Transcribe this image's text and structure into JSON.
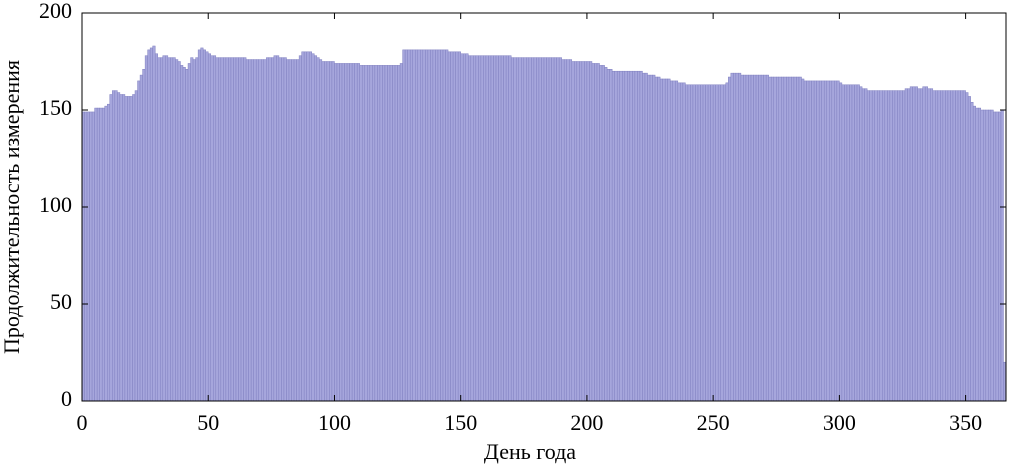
{
  "chart_data": {
    "type": "bar",
    "xlabel": "День года",
    "ylabel": "Продолжительность измерения",
    "color": "#a6a6dc",
    "edgecolor": "#8080c0",
    "xlim": [
      0,
      366
    ],
    "ylim": [
      0,
      200
    ],
    "xticks": [
      0,
      50,
      100,
      150,
      200,
      250,
      300,
      350
    ],
    "yticks": [
      0,
      50,
      100,
      150,
      200
    ],
    "x": [
      0,
      1,
      2,
      3,
      4,
      5,
      6,
      7,
      8,
      9,
      10,
      11,
      12,
      13,
      14,
      15,
      16,
      17,
      18,
      19,
      20,
      21,
      22,
      23,
      24,
      25,
      26,
      27,
      28,
      29,
      30,
      31,
      32,
      33,
      34,
      35,
      36,
      37,
      38,
      39,
      40,
      41,
      42,
      43,
      44,
      45,
      46,
      47,
      48,
      49,
      50,
      51,
      52,
      53,
      54,
      55,
      56,
      57,
      58,
      59,
      60,
      61,
      62,
      63,
      64,
      65,
      66,
      67,
      68,
      69,
      70,
      71,
      72,
      73,
      74,
      75,
      76,
      77,
      78,
      79,
      80,
      81,
      82,
      83,
      84,
      85,
      86,
      87,
      88,
      89,
      90,
      91,
      92,
      93,
      94,
      95,
      96,
      97,
      98,
      99,
      100,
      101,
      102,
      103,
      104,
      105,
      106,
      107,
      108,
      109,
      110,
      111,
      112,
      113,
      114,
      115,
      116,
      117,
      118,
      119,
      120,
      121,
      122,
      123,
      124,
      125,
      126,
      127,
      128,
      129,
      130,
      131,
      132,
      133,
      134,
      135,
      136,
      137,
      138,
      139,
      140,
      141,
      142,
      143,
      144,
      145,
      146,
      147,
      148,
      149,
      150,
      151,
      152,
      153,
      154,
      155,
      156,
      157,
      158,
      159,
      160,
      161,
      162,
      163,
      164,
      165,
      166,
      167,
      168,
      169,
      170,
      171,
      172,
      173,
      174,
      175,
      176,
      177,
      178,
      179,
      180,
      181,
      182,
      183,
      184,
      185,
      186,
      187,
      188,
      189,
      190,
      191,
      192,
      193,
      194,
      195,
      196,
      197,
      198,
      199,
      200,
      201,
      202,
      203,
      204,
      205,
      206,
      207,
      208,
      209,
      210,
      211,
      212,
      213,
      214,
      215,
      216,
      217,
      218,
      219,
      220,
      221,
      222,
      223,
      224,
      225,
      226,
      227,
      228,
      229,
      230,
      231,
      232,
      233,
      234,
      235,
      236,
      237,
      238,
      239,
      240,
      241,
      242,
      243,
      244,
      245,
      246,
      247,
      248,
      249,
      250,
      251,
      252,
      253,
      254,
      255,
      256,
      257,
      258,
      259,
      260,
      261,
      262,
      263,
      264,
      265,
      266,
      267,
      268,
      269,
      270,
      271,
      272,
      273,
      274,
      275,
      276,
      277,
      278,
      279,
      280,
      281,
      282,
      283,
      284,
      285,
      286,
      287,
      288,
      289,
      290,
      291,
      292,
      293,
      294,
      295,
      296,
      297,
      298,
      299,
      300,
      301,
      302,
      303,
      304,
      305,
      306,
      307,
      308,
      309,
      310,
      311,
      312,
      313,
      314,
      315,
      316,
      317,
      318,
      319,
      320,
      321,
      322,
      323,
      324,
      325,
      326,
      327,
      328,
      329,
      330,
      331,
      332,
      333,
      334,
      335,
      336,
      337,
      338,
      339,
      340,
      341,
      342,
      343,
      344,
      345,
      346,
      347,
      348,
      349,
      350,
      351,
      352,
      353,
      354,
      355,
      356,
      357,
      358,
      359,
      360,
      361,
      362,
      363,
      364,
      365
    ],
    "values": [
      149,
      149,
      149,
      149,
      149,
      151,
      151,
      151,
      151,
      152,
      153,
      158,
      160,
      160,
      159,
      158,
      158,
      157,
      157,
      157,
      158,
      160,
      165,
      168,
      171,
      178,
      181,
      182,
      183,
      179,
      177,
      177,
      178,
      178,
      177,
      177,
      177,
      176,
      175,
      173,
      172,
      171,
      174,
      177,
      176,
      177,
      181,
      182,
      181,
      180,
      179,
      178,
      178,
      177,
      177,
      177,
      177,
      177,
      177,
      177,
      177,
      177,
      177,
      177,
      177,
      176,
      176,
      176,
      176,
      176,
      176,
      176,
      176,
      177,
      177,
      177,
      178,
      178,
      177,
      177,
      177,
      176,
      176,
      176,
      176,
      176,
      178,
      180,
      180,
      180,
      180,
      179,
      178,
      177,
      176,
      175,
      175,
      175,
      175,
      175,
      174,
      174,
      174,
      174,
      174,
      174,
      174,
      174,
      174,
      174,
      173,
      173,
      173,
      173,
      173,
      173,
      173,
      173,
      173,
      173,
      173,
      173,
      173,
      173,
      173,
      173,
      174,
      181,
      181,
      181,
      181,
      181,
      181,
      181,
      181,
      181,
      181,
      181,
      181,
      181,
      181,
      181,
      181,
      181,
      181,
      180,
      180,
      180,
      180,
      180,
      179,
      179,
      179,
      178,
      178,
      178,
      178,
      178,
      178,
      178,
      178,
      178,
      178,
      178,
      178,
      178,
      178,
      178,
      178,
      178,
      177,
      177,
      177,
      177,
      177,
      177,
      177,
      177,
      177,
      177,
      177,
      177,
      177,
      177,
      177,
      177,
      177,
      177,
      177,
      177,
      176,
      176,
      176,
      176,
      175,
      175,
      175,
      175,
      175,
      175,
      175,
      175,
      174,
      174,
      174,
      173,
      173,
      172,
      171,
      171,
      170,
      170,
      170,
      170,
      170,
      170,
      170,
      170,
      170,
      170,
      170,
      170,
      169,
      169,
      168,
      168,
      168,
      167,
      167,
      166,
      166,
      166,
      166,
      165,
      165,
      165,
      164,
      164,
      164,
      163,
      163,
      163,
      163,
      163,
      163,
      163,
      163,
      163,
      163,
      163,
      163,
      163,
      163,
      163,
      163,
      164,
      167,
      169,
      169,
      169,
      169,
      168,
      168,
      168,
      168,
      168,
      168,
      168,
      168,
      168,
      168,
      168,
      167,
      167,
      167,
      167,
      167,
      167,
      167,
      167,
      167,
      167,
      167,
      167,
      167,
      166,
      165,
      165,
      165,
      165,
      165,
      165,
      165,
      165,
      165,
      165,
      165,
      165,
      165,
      165,
      164,
      163,
      163,
      163,
      163,
      163,
      163,
      163,
      162,
      161,
      161,
      160,
      160,
      160,
      160,
      160,
      160,
      160,
      160,
      160,
      160,
      160,
      160,
      160,
      160,
      160,
      161,
      161,
      162,
      162,
      162,
      161,
      161,
      162,
      162,
      161,
      161,
      160,
      160,
      160,
      160,
      160,
      160,
      160,
      160,
      160,
      160,
      160,
      160,
      160,
      159,
      157,
      154,
      152,
      151,
      151,
      150,
      150,
      150,
      150,
      150,
      149,
      149,
      149,
      150,
      20
    ]
  }
}
